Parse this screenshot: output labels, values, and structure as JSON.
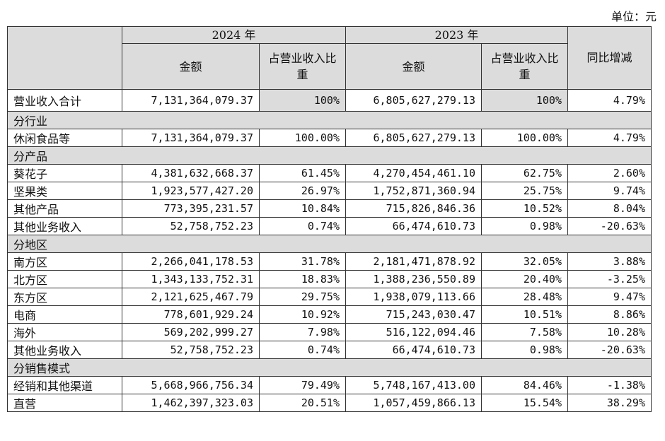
{
  "unit_label": "单位：元",
  "header": {
    "year_2024": "2024 年",
    "year_2023": "2023 年",
    "amount": "金额",
    "share": "占营业收入比重",
    "yoy": "同比增减"
  },
  "total": {
    "label": "营业收入合计",
    "amt_2024": "7,131,364,079.37",
    "pct_2024": "100%",
    "amt_2023": "6,805,627,279.13",
    "pct_2023": "100%",
    "yoy": "4.79%"
  },
  "sections": [
    {
      "title": "分行业",
      "rows": [
        {
          "label": "休闲食品等",
          "amt_2024": "7,131,364,079.37",
          "pct_2024": "100.00%",
          "amt_2023": "6,805,627,279.13",
          "pct_2023": "100.00%",
          "yoy": "4.79%"
        }
      ]
    },
    {
      "title": "分产品",
      "rows": [
        {
          "label": "葵花子",
          "amt_2024": "4,381,632,668.37",
          "pct_2024": "61.45%",
          "amt_2023": "4,270,454,461.10",
          "pct_2023": "62.75%",
          "yoy": "2.60%"
        },
        {
          "label": "坚果类",
          "amt_2024": "1,923,577,427.20",
          "pct_2024": "26.97%",
          "amt_2023": "1,752,871,360.94",
          "pct_2023": "25.75%",
          "yoy": "9.74%"
        },
        {
          "label": "其他产品",
          "amt_2024": "773,395,231.57",
          "pct_2024": "10.84%",
          "amt_2023": "715,826,846.36",
          "pct_2023": "10.52%",
          "yoy": "8.04%"
        },
        {
          "label": "其他业务收入",
          "amt_2024": "52,758,752.23",
          "pct_2024": "0.74%",
          "amt_2023": "66,474,610.73",
          "pct_2023": "0.98%",
          "yoy": "-20.63%"
        }
      ]
    },
    {
      "title": "分地区",
      "rows": [
        {
          "label": "南方区",
          "amt_2024": "2,266,041,178.53",
          "pct_2024": "31.78%",
          "amt_2023": "2,181,471,878.92",
          "pct_2023": "32.05%",
          "yoy": "3.88%"
        },
        {
          "label": "北方区",
          "amt_2024": "1,343,133,752.31",
          "pct_2024": "18.83%",
          "amt_2023": "1,388,236,550.89",
          "pct_2023": "20.40%",
          "yoy": "-3.25%"
        },
        {
          "label": "东方区",
          "amt_2024": "2,121,625,467.79",
          "pct_2024": "29.75%",
          "amt_2023": "1,938,079,113.66",
          "pct_2023": "28.48%",
          "yoy": "9.47%"
        },
        {
          "label": "电商",
          "amt_2024": "778,601,929.24",
          "pct_2024": "10.92%",
          "amt_2023": "715,243,030.47",
          "pct_2023": "10.51%",
          "yoy": "8.86%"
        },
        {
          "label": "海外",
          "amt_2024": "569,202,999.27",
          "pct_2024": "7.98%",
          "amt_2023": "516,122,094.46",
          "pct_2023": "7.58%",
          "yoy": "10.28%"
        },
        {
          "label": "其他业务收入",
          "amt_2024": "52,758,752.23",
          "pct_2024": "0.74%",
          "amt_2023": "66,474,610.73",
          "pct_2023": "0.98%",
          "yoy": "-20.63%"
        }
      ]
    },
    {
      "title": "分销售模式",
      "rows": [
        {
          "label": "经销和其他渠道",
          "amt_2024": "5,668,966,756.34",
          "pct_2024": "79.49%",
          "amt_2023": "5,748,167,413.00",
          "pct_2023": "84.46%",
          "yoy": "-1.38%"
        },
        {
          "label": "直营",
          "amt_2024": "1,462,397,323.03",
          "pct_2024": "20.51%",
          "amt_2023": "1,057,459,866.13",
          "pct_2023": "15.54%",
          "yoy": "38.29%"
        }
      ]
    }
  ]
}
